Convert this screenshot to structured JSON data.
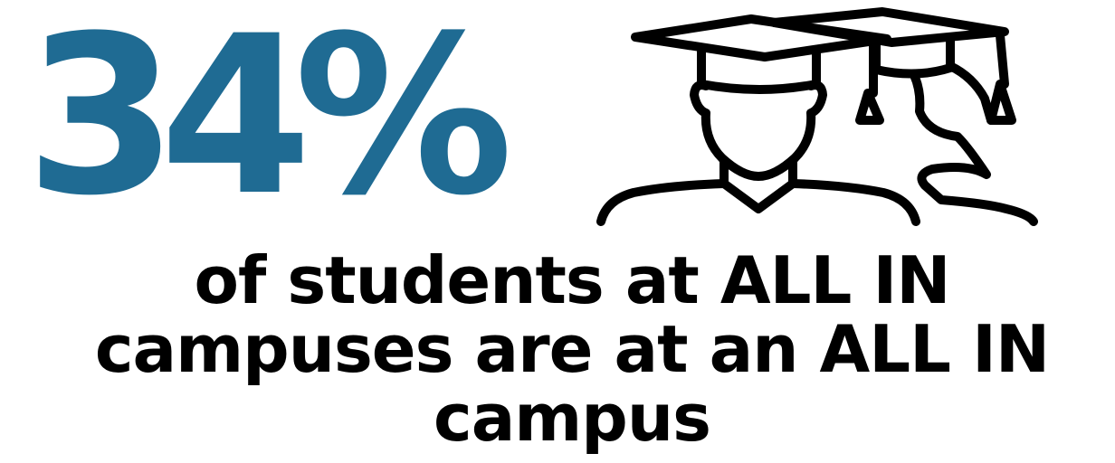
{
  "stat": {
    "value": "34%",
    "color": "#1f6b93"
  },
  "icon": {
    "name": "graduates-icon",
    "stroke_color": "#000000"
  },
  "caption": {
    "line1": "of students at ALL IN",
    "line2": "campuses are at an ALL IN",
    "line3": "campus"
  }
}
